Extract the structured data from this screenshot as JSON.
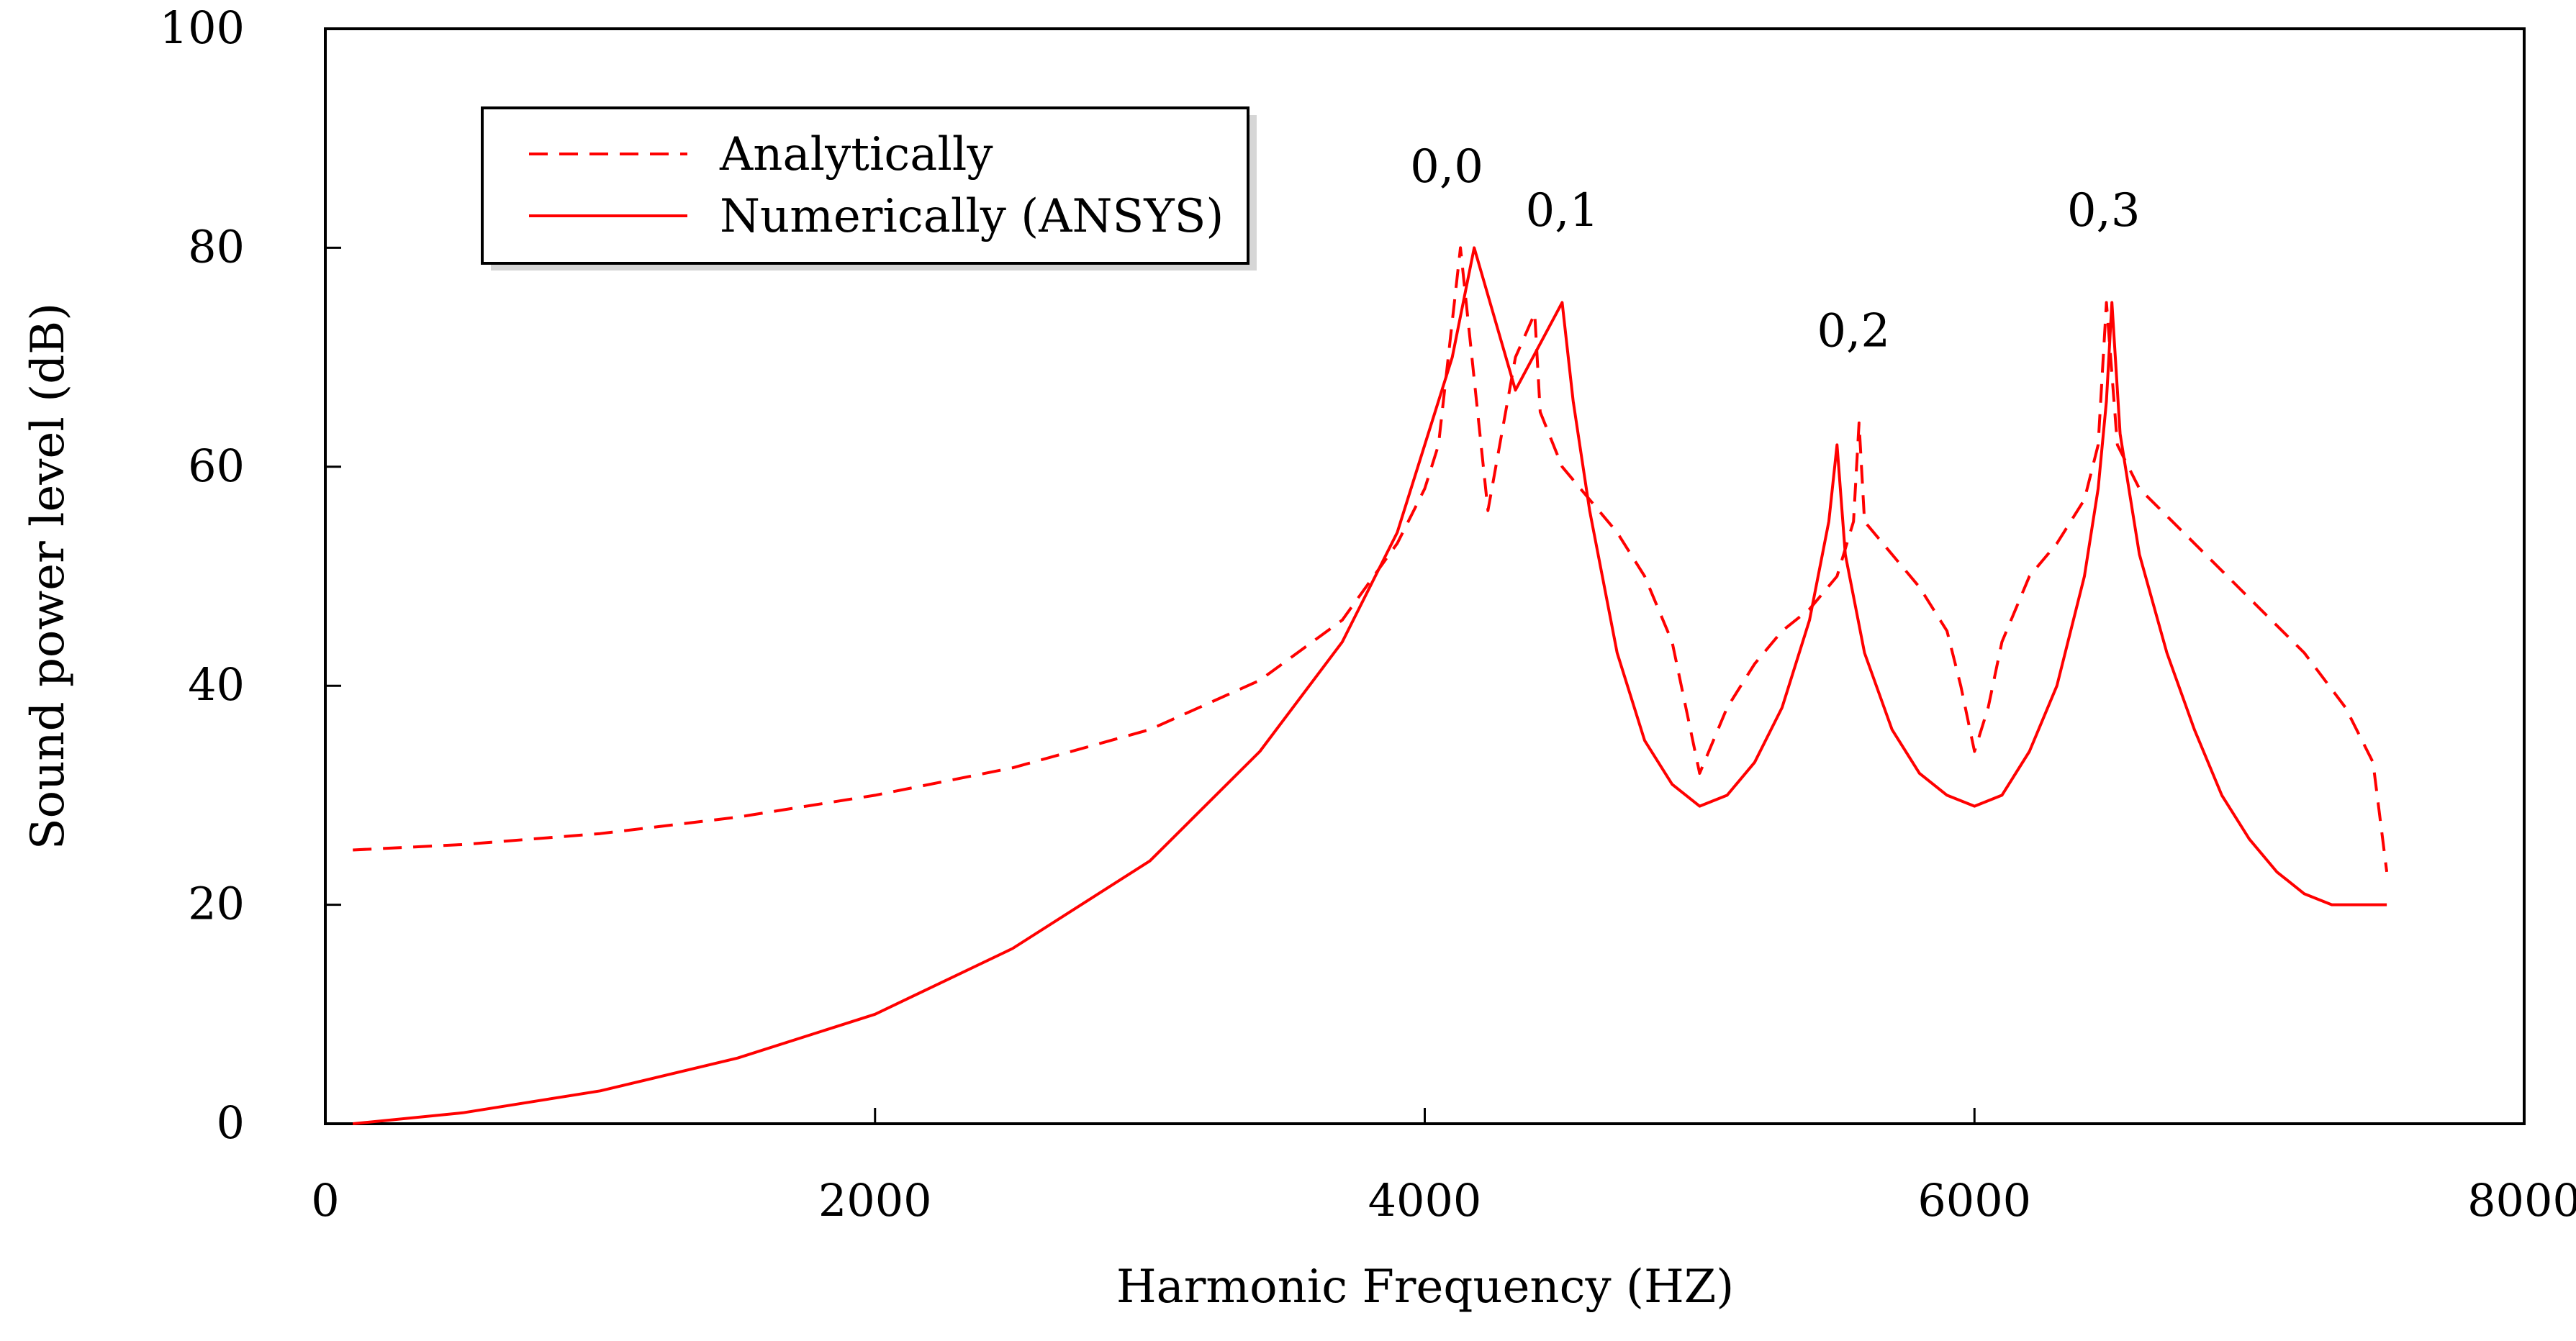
{
  "chart_data": {
    "type": "line",
    "title": "",
    "xlabel": "Harmonic Frequency (HZ)",
    "ylabel": "Sound power level (dB)",
    "xlim": [
      0,
      8000
    ],
    "ylim": [
      0,
      100
    ],
    "x_ticks": [
      0,
      2000,
      4000,
      6000,
      8000
    ],
    "x_tick_labels": [
      "0",
      "2000",
      "4000",
      "6000",
      "8000"
    ],
    "y_ticks": [
      0,
      20,
      40,
      60,
      80,
      100
    ],
    "y_tick_labels": [
      "0",
      "20",
      "40",
      "60",
      "80",
      "100"
    ],
    "grid": false,
    "legend_position": "top-left",
    "series": [
      {
        "name": "Analytically",
        "style": "dashed",
        "color": "#ff0000",
        "points": [
          [
            100,
            25
          ],
          [
            500,
            25.5
          ],
          [
            1000,
            26.5
          ],
          [
            1500,
            28
          ],
          [
            2000,
            30
          ],
          [
            2500,
            32.5
          ],
          [
            3000,
            36
          ],
          [
            3400,
            40.5
          ],
          [
            3700,
            46
          ],
          [
            3900,
            53
          ],
          [
            4000,
            58
          ],
          [
            4050,
            62
          ],
          [
            4130,
            80
          ],
          [
            4230,
            56
          ],
          [
            4330,
            70
          ],
          [
            4400,
            74
          ],
          [
            4420,
            65
          ],
          [
            4500,
            60
          ],
          [
            4600,
            57
          ],
          [
            4700,
            54
          ],
          [
            4800,
            50
          ],
          [
            4900,
            44
          ],
          [
            4950,
            38
          ],
          [
            5000,
            32
          ],
          [
            5100,
            38
          ],
          [
            5200,
            42
          ],
          [
            5300,
            45
          ],
          [
            5400,
            47
          ],
          [
            5500,
            50
          ],
          [
            5560,
            55
          ],
          [
            5580,
            64
          ],
          [
            5600,
            55
          ],
          [
            5700,
            52
          ],
          [
            5800,
            49
          ],
          [
            5900,
            45
          ],
          [
            5950,
            40
          ],
          [
            6000,
            34
          ],
          [
            6050,
            38
          ],
          [
            6100,
            44
          ],
          [
            6200,
            50
          ],
          [
            6300,
            53
          ],
          [
            6400,
            57
          ],
          [
            6450,
            62
          ],
          [
            6480,
            75
          ],
          [
            6520,
            62
          ],
          [
            6600,
            58
          ],
          [
            6800,
            53
          ],
          [
            7000,
            48
          ],
          [
            7200,
            43
          ],
          [
            7350,
            38
          ],
          [
            7450,
            33
          ],
          [
            7500,
            23
          ]
        ]
      },
      {
        "name": "Numerically (ANSYS)",
        "style": "solid",
        "color": "#ff0000",
        "points": [
          [
            100,
            0
          ],
          [
            500,
            1
          ],
          [
            1000,
            3
          ],
          [
            1500,
            6
          ],
          [
            2000,
            10
          ],
          [
            2500,
            16
          ],
          [
            3000,
            24
          ],
          [
            3400,
            34
          ],
          [
            3700,
            44
          ],
          [
            3900,
            54
          ],
          [
            4000,
            62
          ],
          [
            4100,
            70
          ],
          [
            4180,
            80
          ],
          [
            4330,
            67
          ],
          [
            4500,
            75
          ],
          [
            4540,
            66
          ],
          [
            4600,
            56
          ],
          [
            4700,
            43
          ],
          [
            4800,
            35
          ],
          [
            4900,
            31
          ],
          [
            5000,
            29
          ],
          [
            5100,
            30
          ],
          [
            5200,
            33
          ],
          [
            5300,
            38
          ],
          [
            5400,
            46
          ],
          [
            5470,
            55
          ],
          [
            5500,
            62
          ],
          [
            5530,
            52
          ],
          [
            5600,
            43
          ],
          [
            5700,
            36
          ],
          [
            5800,
            32
          ],
          [
            5900,
            30
          ],
          [
            6000,
            29
          ],
          [
            6100,
            30
          ],
          [
            6200,
            34
          ],
          [
            6300,
            40
          ],
          [
            6400,
            50
          ],
          [
            6450,
            58
          ],
          [
            6480,
            66
          ],
          [
            6500,
            75
          ],
          [
            6530,
            63
          ],
          [
            6600,
            52
          ],
          [
            6700,
            43
          ],
          [
            6800,
            36
          ],
          [
            6900,
            30
          ],
          [
            7000,
            26
          ],
          [
            7100,
            23
          ],
          [
            7200,
            21
          ],
          [
            7300,
            20
          ],
          [
            7500,
            20
          ]
        ]
      }
    ],
    "annotations": [
      {
        "text": "0,0",
        "x": 4080,
        "y": 86
      },
      {
        "text": "0,1",
        "x": 4500,
        "y": 82
      },
      {
        "text": "0,2",
        "x": 5560,
        "y": 71
      },
      {
        "text": "0,3",
        "x": 6470,
        "y": 82
      }
    ]
  }
}
